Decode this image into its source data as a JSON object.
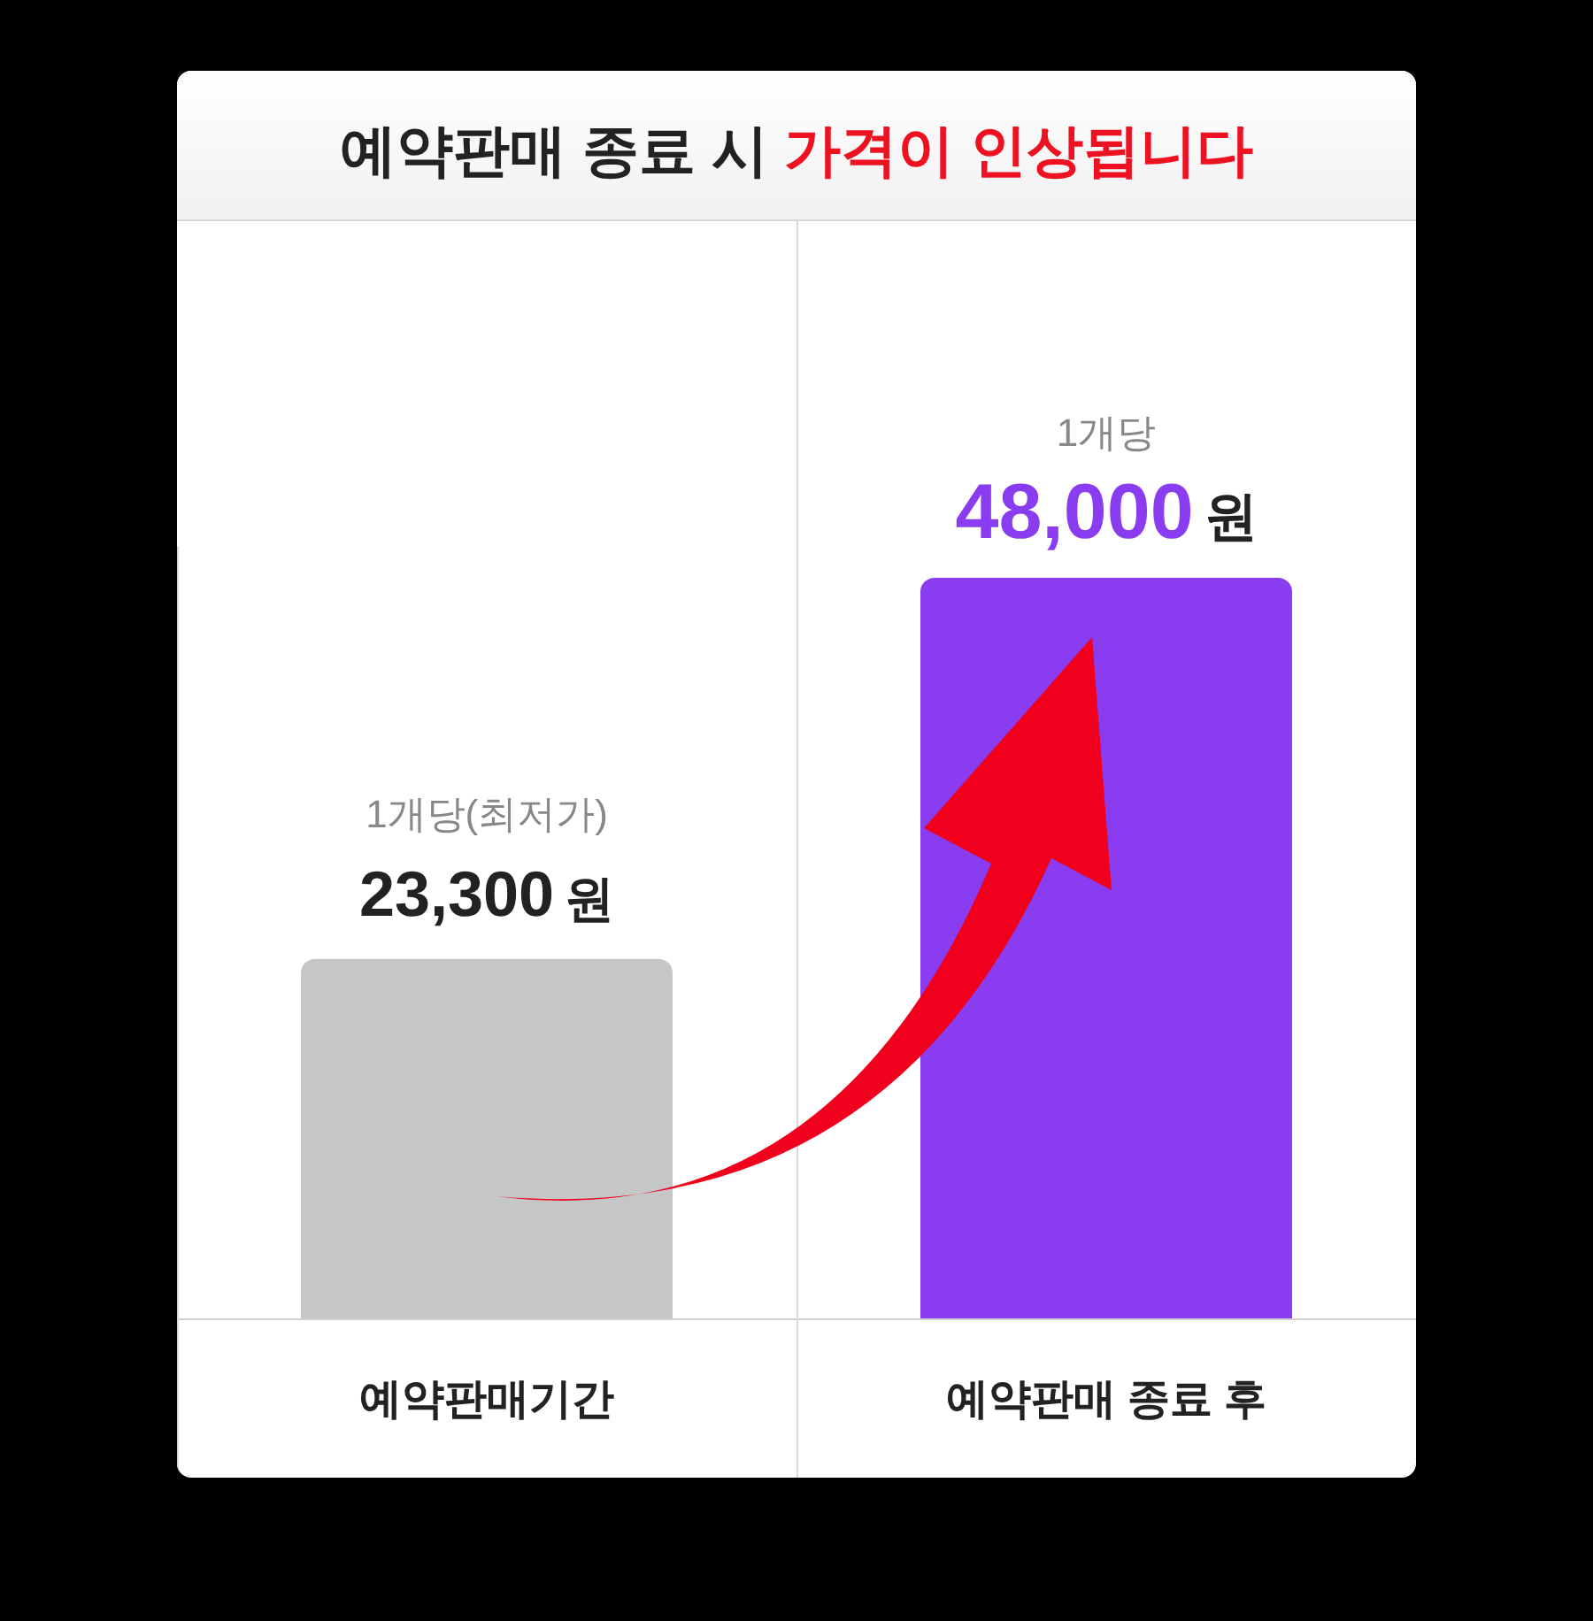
{
  "chart_data": {
    "type": "bar",
    "title": "예약판매 종료 시 가격이 인상됩니다",
    "categories": [
      "예약판매기간",
      "예약판매 종료 후"
    ],
    "values": [
      23300,
      48000
    ],
    "colors": [
      "#c6c6c6",
      "#8a3cf0"
    ],
    "value_labels": [
      "23,300원",
      "48,000원"
    ],
    "annotations": [
      "1개당(최저가)",
      "1개당"
    ],
    "grid": "x"
  }
}
